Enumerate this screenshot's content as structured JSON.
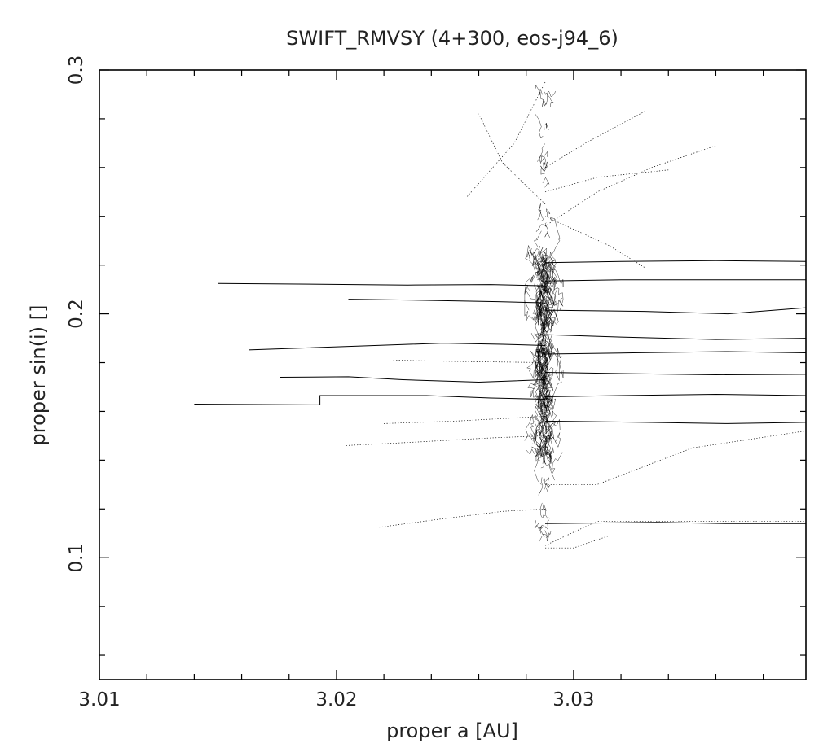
{
  "chart_data": {
    "type": "line",
    "title": "SWIFT_RMVSY (4+300, eos-j94_6)",
    "xlabel": "proper a [AU]",
    "ylabel": "proper sin(i) []",
    "xlim": [
      3.01,
      3.0398
    ],
    "ylim": [
      0.05,
      0.3
    ],
    "grid": false,
    "x_ticks": [
      {
        "value": 3.01,
        "label": "3.01"
      },
      {
        "value": 3.02,
        "label": "3.02"
      },
      {
        "value": 3.03,
        "label": "3.03"
      }
    ],
    "y_ticks": [
      {
        "value": 0.1,
        "label": "0.1"
      },
      {
        "value": 0.2,
        "label": "0.2"
      },
      {
        "value": 0.3,
        "label": "0.3"
      }
    ],
    "x_minor_step": 0.002,
    "y_minor_step": 0.02,
    "cloud": {
      "center_a": 3.02875,
      "a_spread": 0.00045,
      "sini_min": 0.106,
      "sini_max": 0.298,
      "dense_min": 0.14,
      "dense_max": 0.225
    },
    "series": [
      {
        "style": "solid",
        "x": [
          3.014,
          3.0193,
          3.0193,
          3.0238,
          3.0265,
          3.0288
        ],
        "y": [
          0.163,
          0.1627,
          0.1665,
          0.1665,
          0.1655,
          0.165
        ]
      },
      {
        "style": "solid",
        "x": [
          3.015,
          3.023,
          3.0265,
          3.0288
        ],
        "y": [
          0.2125,
          0.2118,
          0.212,
          0.2115
        ]
      },
      {
        "style": "solid",
        "x": [
          3.0163,
          3.021,
          3.0245,
          3.027,
          3.0288
        ],
        "y": [
          0.1852,
          0.1868,
          0.188,
          0.1875,
          0.187
        ]
      },
      {
        "style": "solid",
        "x": [
          3.0176,
          3.0205,
          3.0228,
          3.026,
          3.0288
        ],
        "y": [
          0.174,
          0.1742,
          0.173,
          0.172,
          0.173
        ]
      },
      {
        "style": "solid",
        "x": [
          3.0205,
          3.024,
          3.0268,
          3.0288
        ],
        "y": [
          0.206,
          0.2055,
          0.205,
          0.2045
        ]
      },
      {
        "style": "dotted",
        "x": [
          3.0218,
          3.0245,
          3.027,
          3.0288
        ],
        "y": [
          0.1125,
          0.116,
          0.119,
          0.12
        ]
      },
      {
        "style": "dotted",
        "x": [
          3.0204,
          3.0235,
          3.0262,
          3.0288
        ],
        "y": [
          0.146,
          0.1475,
          0.149,
          0.15
        ]
      },
      {
        "style": "dotted",
        "x": [
          3.0224,
          3.025,
          3.0288
        ],
        "y": [
          0.181,
          0.1805,
          0.18
        ]
      },
      {
        "style": "dotted",
        "x": [
          3.022,
          3.025,
          3.0288
        ],
        "y": [
          0.155,
          0.156,
          0.158
        ]
      },
      {
        "style": "dotted",
        "x": [
          3.0288,
          3.031,
          3.0333,
          3.036
        ],
        "y": [
          0.236,
          0.25,
          0.26,
          0.269
        ]
      },
      {
        "style": "dotted",
        "x": [
          3.0288,
          3.031,
          3.034
        ],
        "y": [
          0.25,
          0.256,
          0.259
        ]
      },
      {
        "style": "dotted",
        "x": [
          3.0288,
          3.0305,
          3.033
        ],
        "y": [
          0.26,
          0.27,
          0.283
        ]
      },
      {
        "style": "dotted",
        "x": [
          3.0288,
          3.0315,
          3.033
        ],
        "y": [
          0.24,
          0.228,
          0.219
        ]
      },
      {
        "style": "dotted",
        "x": [
          3.0288,
          3.031,
          3.0398
        ],
        "y": [
          0.105,
          0.115,
          0.115
        ]
      },
      {
        "style": "dotted",
        "x": [
          3.0288,
          3.031,
          3.035,
          3.0398
        ],
        "y": [
          0.13,
          0.13,
          0.145,
          0.152
        ]
      },
      {
        "style": "solid",
        "x": [
          3.0288,
          3.032,
          3.036,
          3.0398
        ],
        "y": [
          0.221,
          0.2215,
          0.2218,
          0.2215
        ]
      },
      {
        "style": "solid",
        "x": [
          3.0288,
          3.032,
          3.036,
          3.0398
        ],
        "y": [
          0.2135,
          0.214,
          0.214,
          0.214
        ]
      },
      {
        "style": "solid",
        "x": [
          3.0288,
          3.033,
          3.0365,
          3.0398
        ],
        "y": [
          0.2015,
          0.201,
          0.2,
          0.2025
        ]
      },
      {
        "style": "solid",
        "x": [
          3.0288,
          3.032,
          3.036,
          3.0398
        ],
        "y": [
          0.1915,
          0.1905,
          0.1895,
          0.19
        ]
      },
      {
        "style": "solid",
        "x": [
          3.0288,
          3.0325,
          3.0365,
          3.0398
        ],
        "y": [
          0.1835,
          0.184,
          0.1845,
          0.184
        ]
      },
      {
        "style": "solid",
        "x": [
          3.0288,
          3.032,
          3.036,
          3.0398
        ],
        "y": [
          0.176,
          0.1755,
          0.175,
          0.1752
        ]
      },
      {
        "style": "solid",
        "x": [
          3.0288,
          3.032,
          3.036,
          3.0398
        ],
        "y": [
          0.166,
          0.1665,
          0.167,
          0.1665
        ]
      },
      {
        "style": "solid",
        "x": [
          3.0288,
          3.033,
          3.0365,
          3.0398
        ],
        "y": [
          0.156,
          0.1555,
          0.155,
          0.1555
        ]
      },
      {
        "style": "solid",
        "x": [
          3.0288,
          3.0335,
          3.0365,
          3.0398
        ],
        "y": [
          0.114,
          0.1145,
          0.114,
          0.114
        ]
      },
      {
        "style": "dotted",
        "x": [
          3.0288,
          3.03,
          3.0315
        ],
        "y": [
          0.104,
          0.104,
          0.109
        ]
      },
      {
        "style": "dotted",
        "x": [
          3.0288,
          3.0275,
          3.0255
        ],
        "y": [
          0.295,
          0.27,
          0.248
        ]
      },
      {
        "style": "dotted",
        "x": [
          3.0288,
          3.027,
          3.026
        ],
        "y": [
          0.245,
          0.262,
          0.282
        ]
      }
    ]
  }
}
